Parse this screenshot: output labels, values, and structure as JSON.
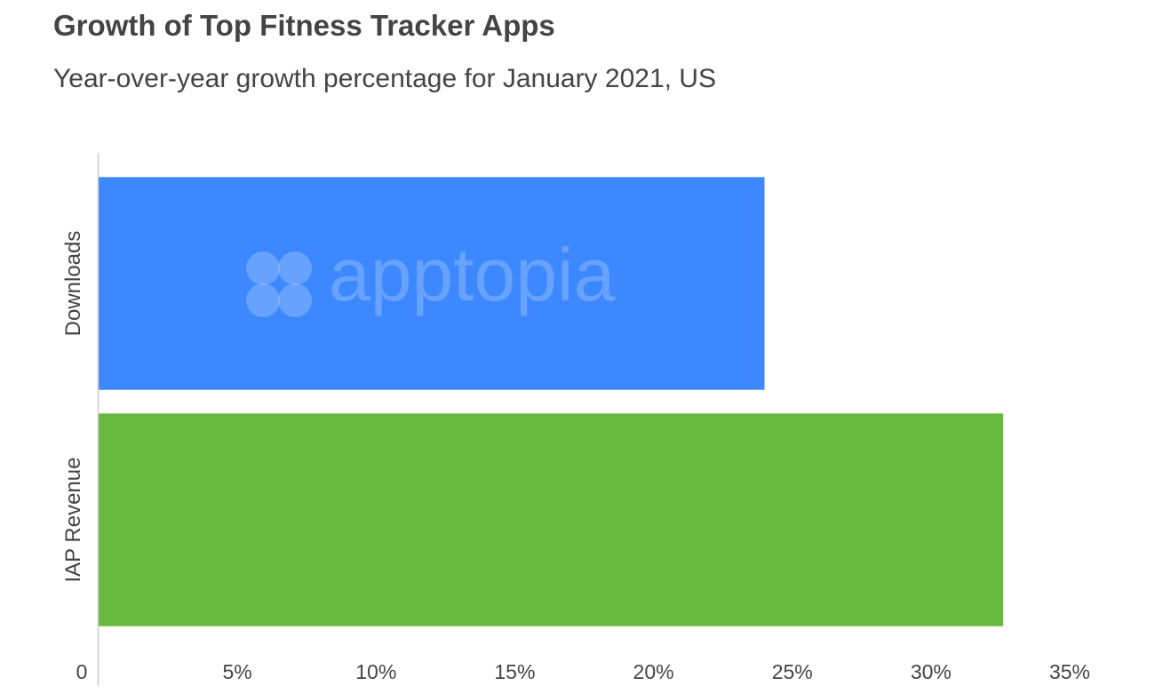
{
  "chart_data": {
    "type": "bar",
    "orientation": "horizontal",
    "title": "Growth of Top Fitness Tracker Apps",
    "subtitle": "Year-over-year growth percentage for January 2021, US",
    "categories": [
      "Downloads",
      "IAP Revenue"
    ],
    "values": [
      24,
      32.6
    ],
    "value_unit": "%",
    "xlim": [
      0,
      35
    ],
    "x_ticks": [
      0,
      5,
      10,
      15,
      20,
      25,
      30,
      35
    ],
    "x_tick_labels": [
      "0",
      "5%",
      "10%",
      "15%",
      "20%",
      "25%",
      "30%",
      "35%"
    ],
    "bar_colors": [
      "#3d88ff",
      "#67b93e"
    ],
    "xlabel": "",
    "ylabel": "",
    "grid": false,
    "legend": "none"
  },
  "watermark": {
    "text": "apptopia",
    "icon": "apptopia-logo-icon"
  }
}
